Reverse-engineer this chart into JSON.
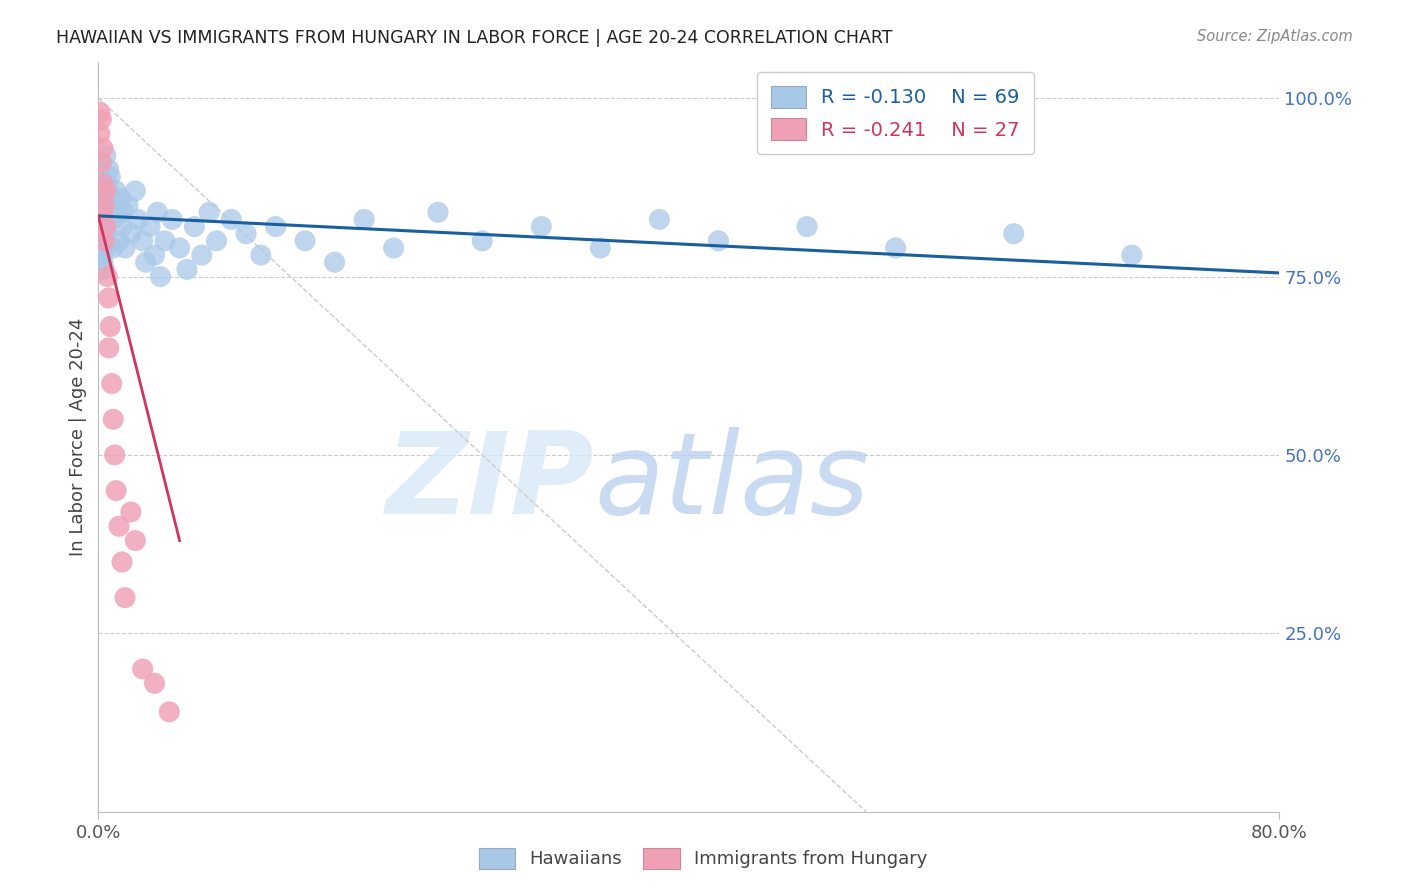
{
  "title": "HAWAIIAN VS IMMIGRANTS FROM HUNGARY IN LABOR FORCE | AGE 20-24 CORRELATION CHART",
  "source": "Source: ZipAtlas.com",
  "ylabel": "In Labor Force | Age 20-24",
  "hawaiians_R": -0.13,
  "hawaiians_N": 69,
  "hungary_R": -0.241,
  "hungary_N": 27,
  "blue_color": "#A8C8E8",
  "pink_color": "#F0A0B5",
  "blue_line_color": "#1A5FA0",
  "pink_line_color": "#D03560",
  "ref_line_color": "#CCCCCC",
  "grid_color": "#CCCCCC",
  "right_tick_color": "#4472C4",
  "xlim": [
    0.0,
    0.8
  ],
  "ylim": [
    0.0,
    1.05
  ],
  "haw_x": [
    0.001,
    0.001,
    0.002,
    0.002,
    0.002,
    0.003,
    0.003,
    0.003,
    0.004,
    0.004,
    0.004,
    0.005,
    0.005,
    0.005,
    0.005,
    0.006,
    0.006,
    0.006,
    0.007,
    0.007,
    0.008,
    0.008,
    0.009,
    0.01,
    0.01,
    0.011,
    0.012,
    0.013,
    0.014,
    0.015,
    0.016,
    0.017,
    0.018,
    0.02,
    0.022,
    0.025,
    0.027,
    0.03,
    0.032,
    0.035,
    0.038,
    0.04,
    0.042,
    0.045,
    0.05,
    0.055,
    0.06,
    0.065,
    0.07,
    0.075,
    0.08,
    0.09,
    0.1,
    0.11,
    0.12,
    0.14,
    0.16,
    0.18,
    0.2,
    0.23,
    0.26,
    0.3,
    0.34,
    0.38,
    0.42,
    0.48,
    0.54,
    0.62,
    0.7
  ],
  "haw_y": [
    0.9,
    0.85,
    0.88,
    0.83,
    0.78,
    0.87,
    0.82,
    0.77,
    0.86,
    0.81,
    0.76,
    0.92,
    0.87,
    0.83,
    0.79,
    0.88,
    0.84,
    0.8,
    0.9,
    0.85,
    0.89,
    0.84,
    0.86,
    0.83,
    0.79,
    0.85,
    0.87,
    0.84,
    0.8,
    0.86,
    0.82,
    0.84,
    0.79,
    0.85,
    0.81,
    0.87,
    0.83,
    0.8,
    0.77,
    0.82,
    0.78,
    0.84,
    0.75,
    0.8,
    0.83,
    0.79,
    0.76,
    0.82,
    0.78,
    0.84,
    0.8,
    0.83,
    0.81,
    0.78,
    0.82,
    0.8,
    0.77,
    0.83,
    0.79,
    0.84,
    0.8,
    0.82,
    0.79,
    0.83,
    0.8,
    0.82,
    0.79,
    0.81,
    0.78
  ],
  "hun_x": [
    0.001,
    0.001,
    0.002,
    0.002,
    0.003,
    0.003,
    0.003,
    0.004,
    0.004,
    0.005,
    0.005,
    0.006,
    0.007,
    0.007,
    0.008,
    0.009,
    0.01,
    0.011,
    0.012,
    0.014,
    0.016,
    0.018,
    0.022,
    0.025,
    0.03,
    0.038,
    0.048
  ],
  "hun_y": [
    0.98,
    0.95,
    0.97,
    0.91,
    0.93,
    0.88,
    0.84,
    0.85,
    0.8,
    0.87,
    0.82,
    0.75,
    0.72,
    0.65,
    0.68,
    0.6,
    0.55,
    0.5,
    0.45,
    0.4,
    0.35,
    0.3,
    0.42,
    0.38,
    0.2,
    0.18,
    0.14
  ],
  "blue_trend_x": [
    0.0,
    0.8
  ],
  "blue_trend_y": [
    0.835,
    0.755
  ],
  "pink_trend_x": [
    0.0,
    0.055
  ],
  "pink_trend_y": [
    0.835,
    0.38
  ]
}
